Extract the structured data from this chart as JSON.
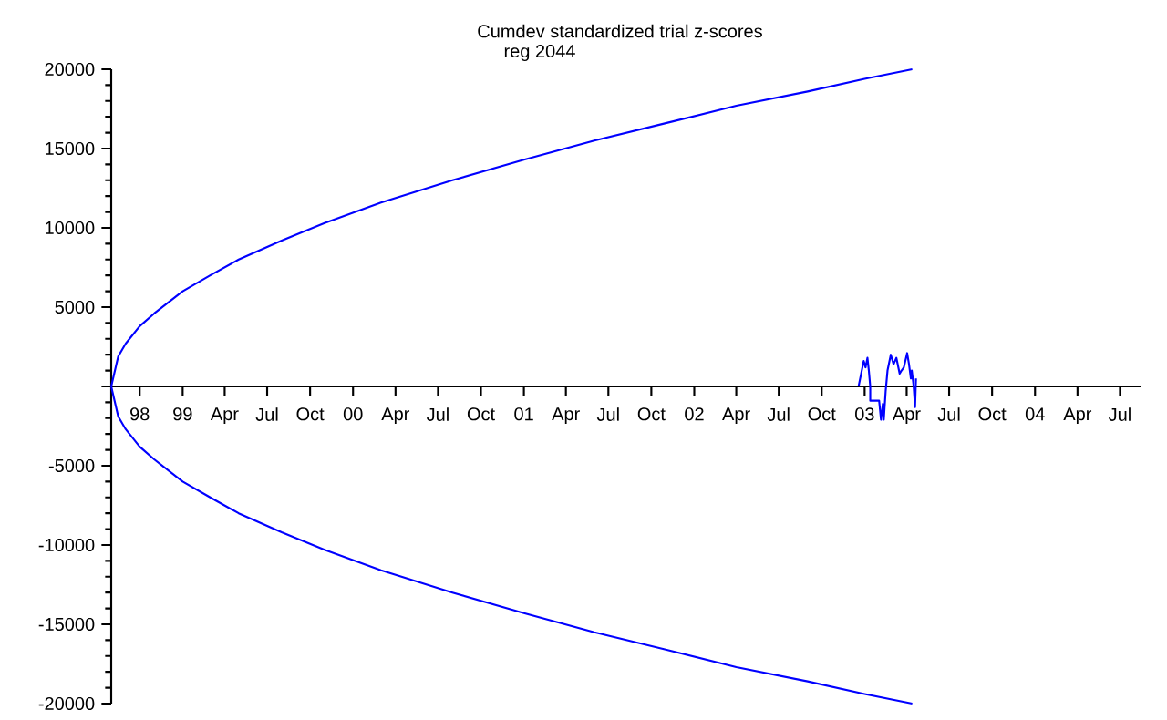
{
  "chart_data": {
    "type": "line",
    "title": "Cumdev  standardized  trial z-scores",
    "subtitle": "reg 2044",
    "xlim": [
      "1998-08-01",
      "2004-08-16"
    ],
    "xticks": [
      {
        "value": "1998-10",
        "label": "98"
      },
      {
        "value": "1999-01",
        "label": "99"
      },
      {
        "value": "1999-04",
        "label": "Apr"
      },
      {
        "value": "1999-07",
        "label": "Jul"
      },
      {
        "value": "1999-10",
        "label": "Oct"
      },
      {
        "value": "2000-01",
        "label": "00"
      },
      {
        "value": "2000-04",
        "label": "Apr"
      },
      {
        "value": "2000-07",
        "label": "Jul"
      },
      {
        "value": "2000-10",
        "label": "Oct"
      },
      {
        "value": "2001-01",
        "label": "01"
      },
      {
        "value": "2001-04",
        "label": "Apr"
      },
      {
        "value": "2001-07",
        "label": "Jul"
      },
      {
        "value": "2001-10",
        "label": "Oct"
      },
      {
        "value": "2002-01",
        "label": "02"
      },
      {
        "value": "2002-04",
        "label": "Apr"
      },
      {
        "value": "2002-07",
        "label": "Jul"
      },
      {
        "value": "2002-10",
        "label": "Oct"
      },
      {
        "value": "2003-01",
        "label": "03"
      },
      {
        "value": "2003-04",
        "label": "Apr"
      },
      {
        "value": "2003-07",
        "label": "Jul"
      },
      {
        "value": "2003-10",
        "label": "Oct"
      },
      {
        "value": "2004-01",
        "label": "04"
      },
      {
        "value": "2004-04",
        "label": "Apr"
      },
      {
        "value": "2004-07",
        "label": "Jul"
      }
    ],
    "ylim": [
      -20000,
      20000
    ],
    "yticks": [
      -20000,
      -15000,
      -10000,
      -5000,
      {
        "value": 0,
        "label": null
      },
      5000,
      10000,
      15000,
      20000
    ],
    "marker": "none",
    "line_style": "solid",
    "series": [
      {
        "color": "#0000ff",
        "x": [
          "1998-08-01",
          "1998-08-16",
          "1998-09-01",
          "1998-10-01",
          "1998-11-01",
          "1999-01-01",
          "1999-03-01",
          "1999-05-01",
          "1999-08-01",
          "1999-11-01",
          "2000-03-01",
          "2000-08-01",
          "2001-01-01",
          "2001-06-01",
          "2001-11-01",
          "2002-04-01",
          "2002-09-01",
          "2003-01-01",
          "2003-04-13"
        ],
        "values": [
          0,
          1900,
          2700,
          3800,
          4600,
          6000,
          7000,
          8000,
          9200,
          10300,
          11600,
          13000,
          14300,
          15500,
          16600,
          17700,
          18600,
          19400,
          20000
        ]
      },
      {
        "color": "#0000ff",
        "x": [
          "1998-08-01",
          "1998-08-16",
          "1998-09-01",
          "1998-10-01",
          "1998-11-01",
          "1999-01-01",
          "1999-03-01",
          "1999-05-01",
          "1999-08-01",
          "1999-11-01",
          "2000-03-01",
          "2000-08-01",
          "2001-01-01",
          "2001-06-01",
          "2001-11-01",
          "2002-04-01",
          "2002-09-01",
          "2003-01-01",
          "2003-04-13"
        ],
        "values": [
          0,
          -1900,
          -2700,
          -3800,
          -4600,
          -6000,
          -7000,
          -8000,
          -9200,
          -10300,
          -11600,
          -13000,
          -14300,
          -15500,
          -16600,
          -17700,
          -18600,
          -19400,
          -20000
        ]
      },
      {
        "color": "#0000ff",
        "x": [
          "2002-12-19",
          "2002-12-30",
          "2003-01-03",
          "2003-01-07",
          "2003-01-10",
          "2003-01-13",
          "2003-01-13",
          "2003-02-01",
          "2003-02-05",
          "2003-02-09",
          "2003-02-11",
          "2003-02-15",
          "2003-02-19",
          "2003-02-26",
          "2003-03-04",
          "2003-03-10",
          "2003-03-17",
          "2003-03-21",
          "2003-03-26",
          "2003-04-02",
          "2003-04-06",
          "2003-04-10",
          "2003-04-12",
          "2003-04-16",
          "2003-04-19",
          "2003-04-21"
        ],
        "values": [
          0,
          1600,
          1200,
          1800,
          1000,
          0,
          -900,
          -900,
          -2100,
          -1100,
          -2100,
          -300,
          1000,
          2000,
          1400,
          1800,
          800,
          1000,
          1200,
          2100,
          1400,
          500,
          1000,
          0,
          -1300,
          500
        ]
      }
    ]
  }
}
